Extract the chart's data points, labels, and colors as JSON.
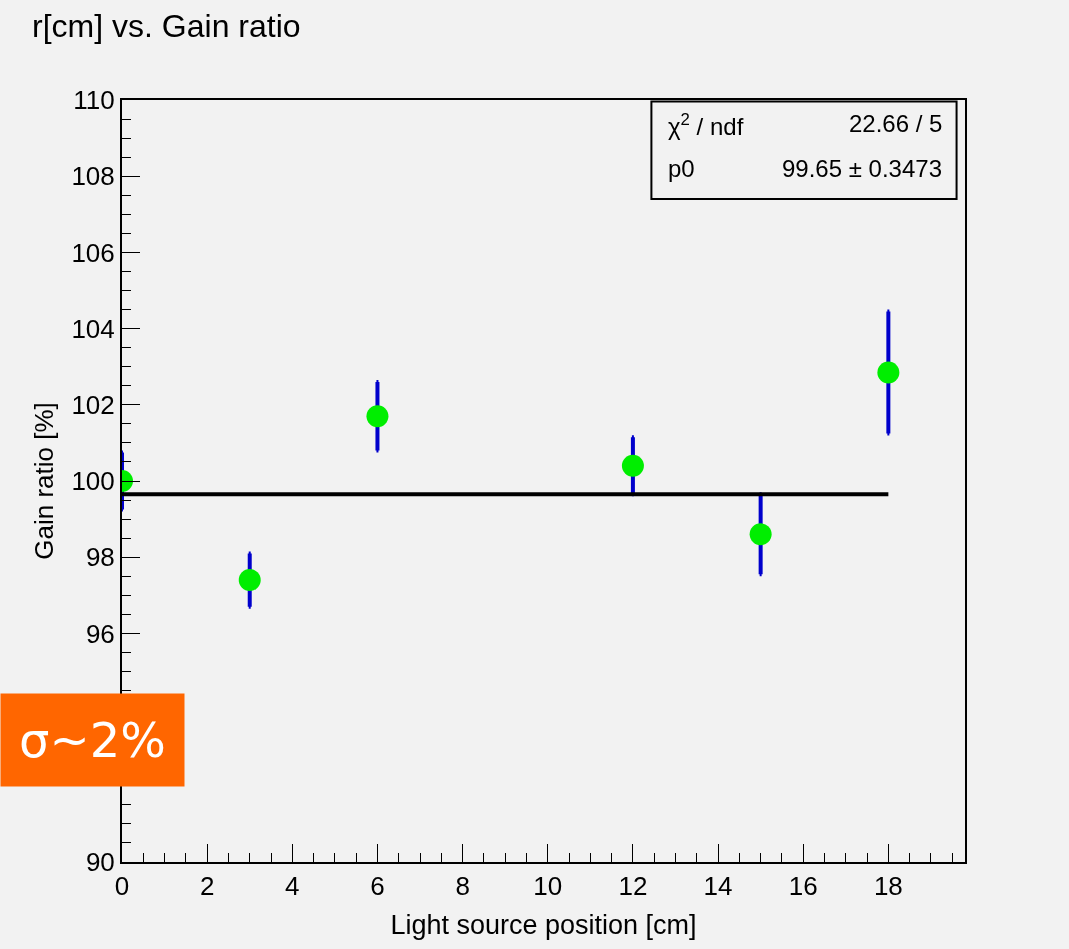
{
  "chart_data": {
    "type": "scatter",
    "title": "r[cm] vs. Gain ratio",
    "xlabel": "Light source position [cm]",
    "ylabel": "Gain ratio [%]",
    "xlim": [
      0,
      19.8
    ],
    "xticks": [
      0,
      2,
      4,
      6,
      8,
      10,
      12,
      14,
      16,
      18
    ],
    "ylim": [
      90,
      110
    ],
    "yticks": [
      90,
      96,
      98,
      100,
      102,
      104,
      106,
      108,
      110
    ],
    "x": [
      0,
      3,
      6,
      12,
      15,
      18
    ],
    "series": [
      {
        "color": "#00ee00",
        "values": [
          100.0,
          97.4,
          101.7,
          100.4,
          98.6,
          102.85
        ],
        "errors": [
          0.75,
          0.7,
          0.9,
          0.75,
          1.05,
          1.6
        ],
        "marker": "circle"
      },
      {
        "type": "line",
        "color": "#000000",
        "x": [
          0,
          18
        ],
        "values": [
          99.65,
          99.65
        ],
        "line_style": "solid"
      }
    ],
    "annotations": [
      "χ$^{2}$ / ndf",
      "22.66 / 5",
      "p0",
      "99.65 ± 0.3473",
      "σ~2%"
    ],
    "grid": false
  }
}
